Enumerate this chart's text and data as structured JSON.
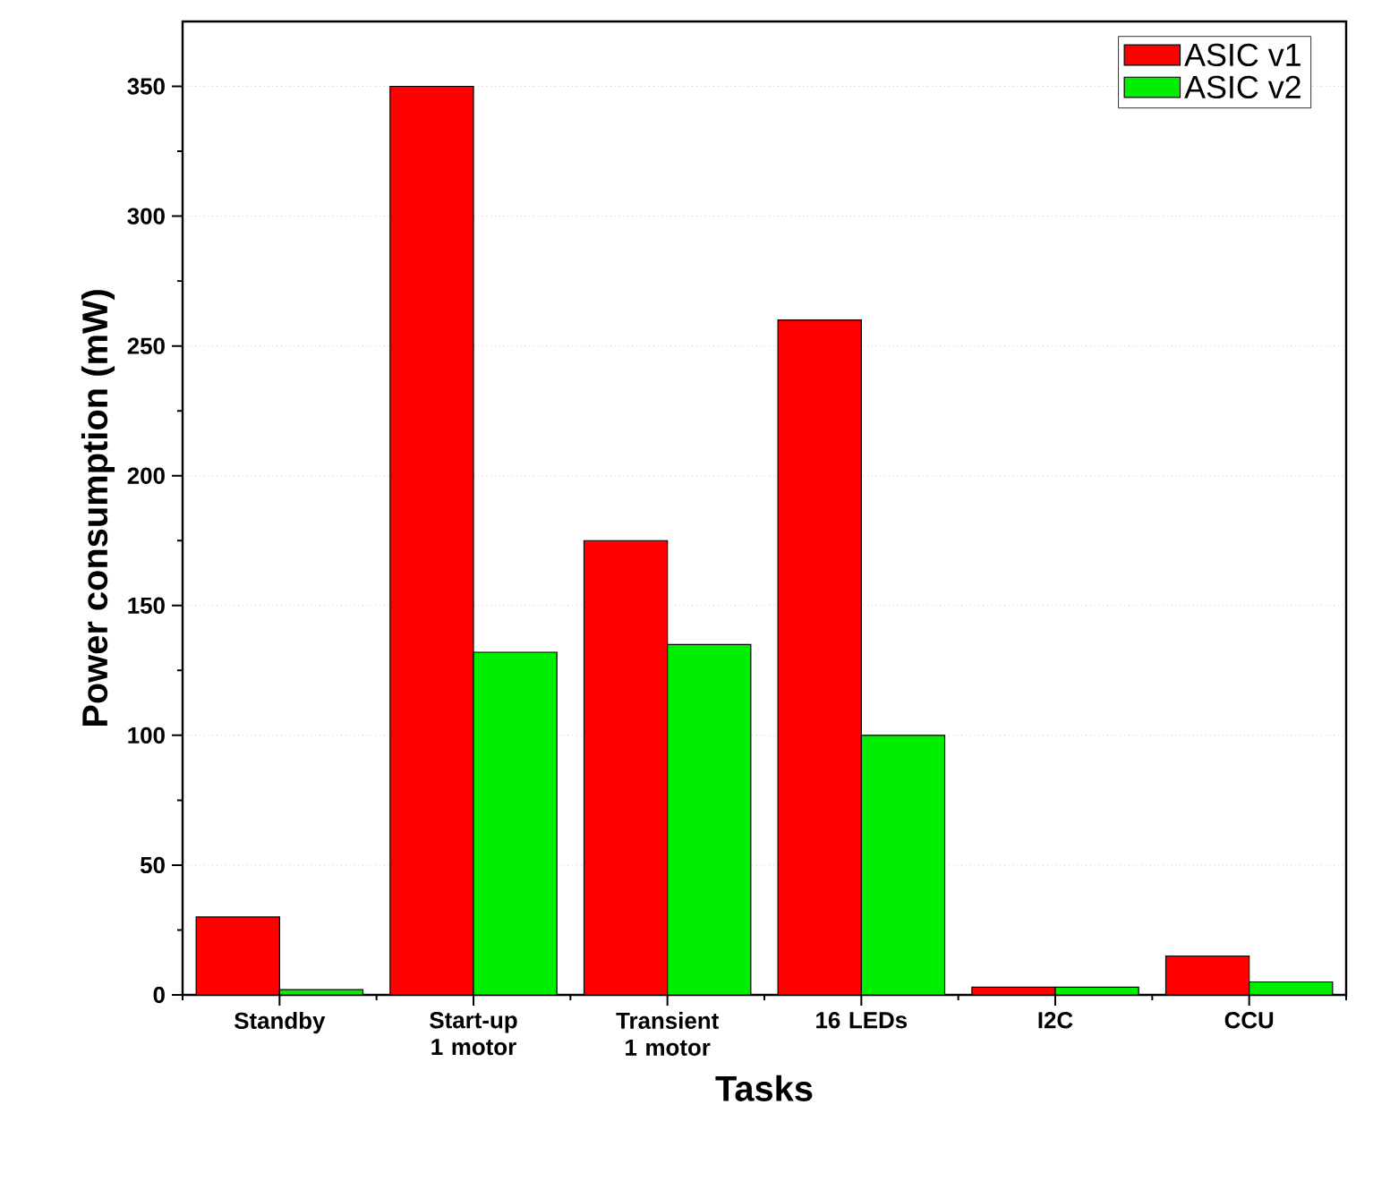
{
  "chart_data": {
    "type": "bar",
    "xlabel": "Tasks",
    "ylabel": "Power consumption (mW)",
    "categories": [
      "Standby",
      "Start-up 1 motor",
      "Transient 1 motor",
      "16 LEDs",
      "I2C",
      "CCU"
    ],
    "series": [
      {
        "name": "ASIC v1",
        "color": "#ff0000",
        "values": [
          30,
          350,
          175,
          260,
          3,
          15
        ]
      },
      {
        "name": "ASIC v2",
        "color": "#00ee00",
        "values": [
          2,
          132,
          135,
          100,
          3,
          5
        ]
      }
    ],
    "ylim": [
      0,
      375
    ],
    "yticks": [
      0,
      50,
      100,
      150,
      200,
      250,
      300,
      350
    ],
    "grid": "y",
    "legend": "top right"
  }
}
